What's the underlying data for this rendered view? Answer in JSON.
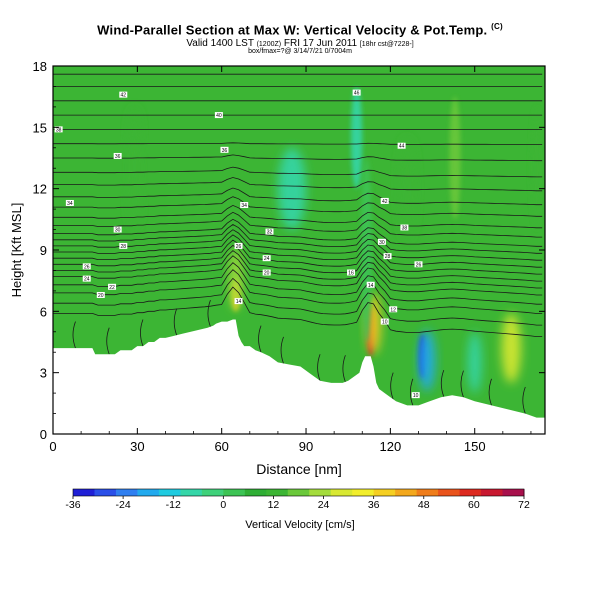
{
  "header": {
    "title": "Wind-Parallel Section at Max W: Vertical Velocity & Pot.Temp.",
    "title_mark": "(C)",
    "valid": "Valid 1400 LST",
    "valid_small": "(1200Z)",
    "date": "FRI 17 Jun 2011",
    "valid_tail": "[18hr cst@7228-]",
    "line2": "box/fmax=?@ 3/14/7/21 0/7004m"
  },
  "chart_data": {
    "type": "heatmap",
    "xlabel": "Distance [nm]",
    "ylabel": "Height [Kft MSL]",
    "xlim": [
      0,
      175
    ],
    "ylim": [
      0,
      18
    ],
    "xticks": [
      "0",
      "30",
      "60",
      "90",
      "120",
      "150"
    ],
    "yticks": [
      "0",
      "3",
      "6",
      "9",
      "12",
      "15",
      "18"
    ],
    "terrain_top_kft": [
      [
        0,
        4.2
      ],
      [
        12,
        4.2
      ],
      [
        14,
        4.2
      ],
      [
        15,
        3.9
      ],
      [
        22,
        3.9
      ],
      [
        24,
        4.1
      ],
      [
        28,
        4.1
      ],
      [
        30,
        4.3
      ],
      [
        32,
        4.3
      ],
      [
        34,
        4.5
      ],
      [
        36,
        4.5
      ],
      [
        38,
        4.7
      ],
      [
        40,
        4.7
      ],
      [
        43,
        4.8
      ],
      [
        46,
        4.9
      ],
      [
        49,
        5.0
      ],
      [
        52,
        5.1
      ],
      [
        55,
        5.2
      ],
      [
        57,
        5.3
      ],
      [
        58,
        5.4
      ],
      [
        60,
        5.5
      ],
      [
        62,
        5.5
      ],
      [
        64,
        5.6
      ],
      [
        65,
        5.6
      ],
      [
        66,
        4.8
      ],
      [
        67,
        4.5
      ],
      [
        68,
        4.3
      ],
      [
        70,
        4.3
      ],
      [
        72,
        4.1
      ],
      [
        74,
        4.0
      ],
      [
        77,
        3.8
      ],
      [
        80,
        3.5
      ],
      [
        84,
        3.4
      ],
      [
        88,
        3.3
      ],
      [
        92,
        2.9
      ],
      [
        95,
        2.6
      ],
      [
        99,
        2.5
      ],
      [
        103,
        2.5
      ],
      [
        105,
        2.6
      ],
      [
        107,
        2.8
      ],
      [
        109,
        3.0
      ],
      [
        110,
        3.5
      ],
      [
        111,
        3.8
      ],
      [
        113,
        3.8
      ],
      [
        114,
        3.3
      ],
      [
        115,
        2.5
      ],
      [
        116,
        2.2
      ],
      [
        118,
        2.0
      ],
      [
        120,
        1.8
      ],
      [
        122,
        1.6
      ],
      [
        126,
        1.4
      ],
      [
        130,
        1.4
      ],
      [
        134,
        1.6
      ],
      [
        138,
        1.8
      ],
      [
        142,
        1.9
      ],
      [
        146,
        1.8
      ],
      [
        150,
        1.6
      ],
      [
        156,
        1.4
      ],
      [
        162,
        1.2
      ],
      [
        168,
        1.0
      ],
      [
        172,
        0.8
      ],
      [
        175,
        0.8
      ]
    ],
    "theta_isentropes_kft": [
      5.9,
      6.4,
      6.9,
      7.3,
      7.7,
      8.0,
      8.3,
      8.6,
      8.9,
      9.2,
      9.5,
      9.8,
      10.2,
      10.6,
      11.1,
      11.6,
      12.2,
      12.8,
      13.5,
      14.2,
      14.9,
      15.6,
      16.3,
      17.0,
      17.6
    ],
    "w_features": [
      {
        "x": 65,
        "y": 6.8,
        "w": 1.5,
        "h": 1.6,
        "w_cms": 40
      },
      {
        "x": 65,
        "y": 7.6,
        "w": 2.4,
        "h": 3.0,
        "w_cms": 24
      },
      {
        "x": 113,
        "y": 5.0,
        "w": 1.4,
        "h": 2.4,
        "w_cms": 64
      },
      {
        "x": 114,
        "y": 5.4,
        "w": 2.6,
        "h": 3.0,
        "w_cms": 40
      },
      {
        "x": 111.5,
        "y": 9.0,
        "w": 2.0,
        "h": 9.0,
        "w_cms": 4
      },
      {
        "x": 131.5,
        "y": 3.8,
        "w": 1.4,
        "h": 2.2,
        "w_cms": -32
      },
      {
        "x": 133,
        "y": 3.6,
        "w": 3.0,
        "h": 3.0,
        "w_cms": -16
      },
      {
        "x": 163,
        "y": 4.2,
        "w": 3.5,
        "h": 3.4,
        "w_cms": 30
      },
      {
        "x": 150,
        "y": 3.5,
        "w": 2.5,
        "h": 3.0,
        "w_cms": -10
      },
      {
        "x": 29,
        "y": 13.0,
        "w": 2.5,
        "h": 6.0,
        "w_cms": 14
      },
      {
        "x": 143,
        "y": 13.5,
        "w": 2.0,
        "h": 6.0,
        "w_cms": 16
      },
      {
        "x": 172,
        "y": 13.0,
        "w": 2.0,
        "h": 6.0,
        "w_cms": 14
      },
      {
        "x": 108,
        "y": 14.5,
        "w": 2.0,
        "h": 5.0,
        "w_cms": -10
      },
      {
        "x": 85,
        "y": 12.0,
        "w": 5.0,
        "h": 4.0,
        "w_cms": -6
      },
      {
        "x": 126,
        "y": 12.0,
        "w": 3.0,
        "h": 5.0,
        "w_cms": 14
      }
    ],
    "contour_labels": [
      {
        "x": 25,
        "y": 16.6,
        "label": "42"
      },
      {
        "x": 2,
        "y": 14.9,
        "label": "38"
      },
      {
        "x": 23,
        "y": 13.6,
        "label": "36"
      },
      {
        "x": 59,
        "y": 15.6,
        "label": "40"
      },
      {
        "x": 61,
        "y": 13.9,
        "label": "36"
      },
      {
        "x": 68,
        "y": 11.2,
        "label": "34"
      },
      {
        "x": 108,
        "y": 16.7,
        "label": "46"
      },
      {
        "x": 124,
        "y": 14.1,
        "label": "44"
      },
      {
        "x": 6,
        "y": 11.3,
        "label": "34"
      },
      {
        "x": 23,
        "y": 10.0,
        "label": "30"
      },
      {
        "x": 25,
        "y": 9.2,
        "label": "28"
      },
      {
        "x": 77,
        "y": 9.9,
        "label": "32"
      },
      {
        "x": 118,
        "y": 11.4,
        "label": "42"
      },
      {
        "x": 125,
        "y": 10.1,
        "label": "38"
      },
      {
        "x": 117,
        "y": 9.4,
        "label": "30"
      },
      {
        "x": 119,
        "y": 8.7,
        "label": "28"
      },
      {
        "x": 130,
        "y": 8.3,
        "label": "26"
      },
      {
        "x": 66,
        "y": 9.2,
        "label": "26"
      },
      {
        "x": 76,
        "y": 8.6,
        "label": "24"
      },
      {
        "x": 76,
        "y": 7.9,
        "label": "20"
      },
      {
        "x": 12,
        "y": 8.2,
        "label": "26"
      },
      {
        "x": 12,
        "y": 7.6,
        "label": "24"
      },
      {
        "x": 21,
        "y": 7.2,
        "label": "22"
      },
      {
        "x": 17,
        "y": 6.8,
        "label": "20"
      },
      {
        "x": 106,
        "y": 7.9,
        "label": "16"
      },
      {
        "x": 113,
        "y": 7.3,
        "label": "14"
      },
      {
        "x": 66,
        "y": 6.5,
        "label": "14"
      },
      {
        "x": 121,
        "y": 6.1,
        "label": "12"
      },
      {
        "x": 118,
        "y": 5.5,
        "label": "10"
      },
      {
        "x": 129,
        "y": 1.9,
        "label": "10"
      }
    ],
    "colorbar": {
      "label": "Vertical Velocity [cm/s]",
      "ticks": [
        "-36",
        "-24",
        "-12",
        "0",
        "12",
        "24",
        "36",
        "48",
        "60",
        "72"
      ],
      "min": -36,
      "max": 72,
      "colors": [
        "#1f1fd6",
        "#2a4fe8",
        "#2f7ff0",
        "#22aaee",
        "#1fcbe0",
        "#35d6a8",
        "#3fd17a",
        "#3cc354",
        "#2fae35",
        "#3cb534",
        "#6ac83a",
        "#a4dc3c",
        "#d8e832",
        "#f2ee2c",
        "#f5cf22",
        "#f3a81d",
        "#ef7d1b",
        "#e9531c",
        "#dd2a20",
        "#c81830",
        "#a8104c"
      ]
    },
    "grid": false
  }
}
